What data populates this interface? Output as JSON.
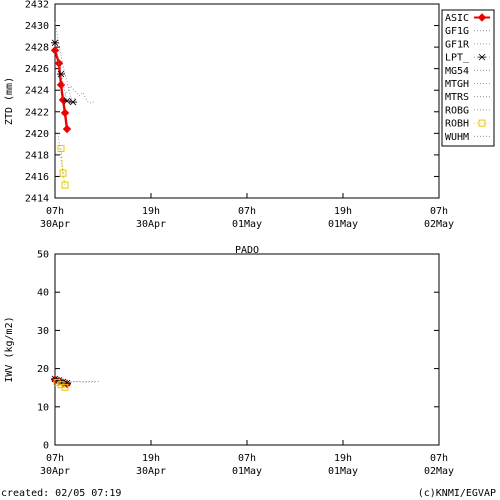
{
  "x_ticks": [
    {
      "top": "07h",
      "bottom": "30Apr"
    },
    {
      "top": "19h",
      "bottom": "30Apr"
    },
    {
      "top": "07h",
      "bottom": "01May"
    },
    {
      "top": "19h",
      "bottom": "01May"
    },
    {
      "top": "07h",
      "bottom": "02May"
    }
  ],
  "footer": {
    "created": "created: 02/05 07:19",
    "credit": "(c)KNMI/EGVAP"
  },
  "colors": {
    "ASIC": "#ee0000",
    "ROBH": "#e8c800",
    "other": "#808080",
    "axis": "#000000"
  },
  "chart_data": [
    {
      "type": "line",
      "ylabel": "ZTD (mm)",
      "xlim_hours": [
        0,
        48
      ],
      "ylim": [
        2414,
        2432
      ],
      "yticks": [
        2414,
        2416,
        2418,
        2420,
        2422,
        2424,
        2426,
        2428,
        2430,
        2432
      ],
      "legend": {
        "placement": "right",
        "entries": [
          {
            "name": "ASIC",
            "style": "solid-diamond"
          },
          {
            "name": "GF1G",
            "style": "dotted"
          },
          {
            "name": "GF1R",
            "style": "dotted"
          },
          {
            "name": "LPT_",
            "style": "dotted-star"
          },
          {
            "name": "MG54",
            "style": "dotted"
          },
          {
            "name": "MTGH",
            "style": "dotted"
          },
          {
            "name": "MTRS",
            "style": "dotted"
          },
          {
            "name": "ROBG",
            "style": "dotted"
          },
          {
            "name": "ROBH",
            "style": "dotted-square"
          },
          {
            "name": "WUHM",
            "style": "dotted"
          }
        ]
      },
      "series": [
        {
          "name": "ASIC",
          "x": [
            0.0,
            0.5,
            0.75,
            1.0,
            1.25,
            1.5
          ],
          "y": [
            2427.7,
            2426.5,
            2424.5,
            2423.1,
            2421.9,
            2420.4
          ]
        },
        {
          "name": "LPT_",
          "x": [
            0.0,
            0.75,
            1.5,
            2.25
          ],
          "y": [
            2428.4,
            2425.5,
            2423.0,
            2422.9
          ]
        },
        {
          "name": "ROBH",
          "x": [
            0.75,
            1.0,
            1.25
          ],
          "y": [
            2418.6,
            2416.3,
            2415.2
          ]
        },
        {
          "name": "GF1G",
          "x": [
            0.0,
            0.5,
            1.0,
            1.5,
            2.0,
            2.5
          ],
          "y": [
            2430.3,
            2428.3,
            2426.3,
            2424.8,
            2423.2,
            2423.2
          ]
        },
        {
          "name": "MG54",
          "x": [
            1.0,
            1.5,
            2.0,
            2.5,
            3.0,
            3.5,
            4.0,
            4.5,
            5.0
          ],
          "y": [
            2423.3,
            2423.8,
            2424.4,
            2423.9,
            2423.5,
            2423.8,
            2423.0,
            2422.8,
            2423.0
          ]
        },
        {
          "name": "WUHM",
          "x": [
            0.4,
            0.6,
            0.8,
            1.0
          ],
          "y": [
            2420.0,
            2418.5,
            2417.3,
            2416.2
          ]
        }
      ]
    },
    {
      "type": "line",
      "title": "PADO",
      "ylabel": "IWV (kg/m2)",
      "xlim_hours": [
        0,
        48
      ],
      "ylim": [
        0,
        50
      ],
      "yticks": [
        0,
        10,
        20,
        30,
        40,
        50
      ],
      "series": [
        {
          "name": "ASIC",
          "x": [
            0.0,
            0.5,
            1.0,
            1.5
          ],
          "y": [
            17.1,
            16.8,
            16.3,
            16.0
          ]
        },
        {
          "name": "LPT_",
          "x": [
            0.0,
            0.5,
            1.0,
            1.5
          ],
          "y": [
            17.3,
            16.9,
            16.5,
            16.2
          ]
        },
        {
          "name": "ROBH",
          "x": [
            0.25,
            0.75,
            1.25
          ],
          "y": [
            16.4,
            15.8,
            15.1
          ]
        },
        {
          "name": "GF1G",
          "x": [
            0.0,
            1.0,
            2.0,
            3.0,
            4.0,
            5.0
          ],
          "y": [
            16.9,
            16.6,
            16.5,
            16.6,
            16.5,
            16.5
          ]
        },
        {
          "name": "MG54",
          "x": [
            0.5,
            1.5,
            2.5,
            3.5,
            4.5,
            5.5
          ],
          "y": [
            16.2,
            16.4,
            16.6,
            16.5,
            16.6,
            16.6
          ]
        }
      ]
    }
  ]
}
